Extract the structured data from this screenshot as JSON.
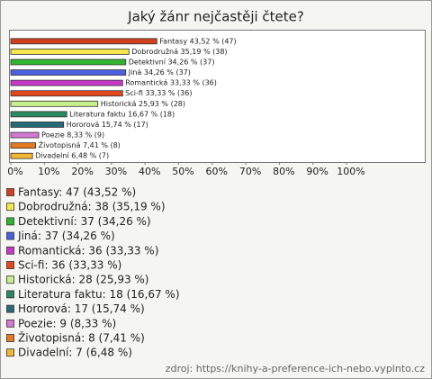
{
  "chart_data": {
    "type": "bar",
    "orientation": "horizontal",
    "title": "Jaký žánr nejčastěji čtete?",
    "categories": [
      "Fantasy",
      "Dobrodružná",
      "Detektivní",
      "Jiná",
      "Romantická",
      "Sci-fi",
      "Historická",
      "Literatura faktu",
      "Hororová",
      "Poezie",
      "Životopisná",
      "Divadelní"
    ],
    "values": [
      43.52,
      35.19,
      34.26,
      34.26,
      33.33,
      33.33,
      25.93,
      16.67,
      15.74,
      8.33,
      7.41,
      6.48
    ],
    "value_labels": [
      "Fantasy 43,52 % (47)",
      "Dobrodružná 35,19 % (38)",
      "Detektivní 34,26 % (37)",
      "Jiná 34,26 % (37)",
      "Romantická 33,33 % (36)",
      "Sci-fi 33,33 % (36)",
      "Historická 25,93 % (28)",
      "Literatura faktu 16,67 % (18)",
      "Hororová 15,74 % (17)",
      "Poezie 8,33 % (9)",
      "Životopisná 7,41 % (8)",
      "Divadelní 6,48 % (7)"
    ],
    "legend_labels": [
      "Fantasy: 47 (43,52 %)",
      "Dobrodružná: 38 (35,19 %)",
      "Detektivní: 37 (34,26 %)",
      "Jiná: 37 (34,26 %)",
      "Romantická: 36 (33,33 %)",
      "Sci-fi: 36 (33,33 %)",
      "Historická: 28 (25,93 %)",
      "Literatura faktu: 18 (16,67 %)",
      "Hororová: 17 (15,74 %)",
      "Poezie: 9 (8,33 %)",
      "Životopisná: 8 (7,41 %)",
      "Divadelní: 7 (6,48 %)"
    ],
    "colors": [
      "#d0401f",
      "#f4e84a",
      "#2fb52f",
      "#4a62e0",
      "#c838c8",
      "#e2481e",
      "#c8f08a",
      "#2a8a62",
      "#246a78",
      "#d478d4",
      "#e57a22",
      "#f2b634"
    ],
    "xlim": [
      0,
      122
    ],
    "xticks": [
      {
        "value": 0,
        "label": "0%"
      },
      {
        "value": 10,
        "label": "10%"
      },
      {
        "value": 20,
        "label": "20%"
      },
      {
        "value": 30,
        "label": "30%"
      },
      {
        "value": 40,
        "label": "40%"
      },
      {
        "value": 50,
        "label": "50%"
      },
      {
        "value": 60,
        "label": "60%"
      },
      {
        "value": 70,
        "label": "70%"
      },
      {
        "value": 80,
        "label": "80%"
      },
      {
        "value": 90,
        "label": "90%"
      },
      {
        "value": 100,
        "label": "100%"
      }
    ],
    "source": "zdroj: https://knihy-a-preference-ich-nebo.vyplnto.cz"
  }
}
